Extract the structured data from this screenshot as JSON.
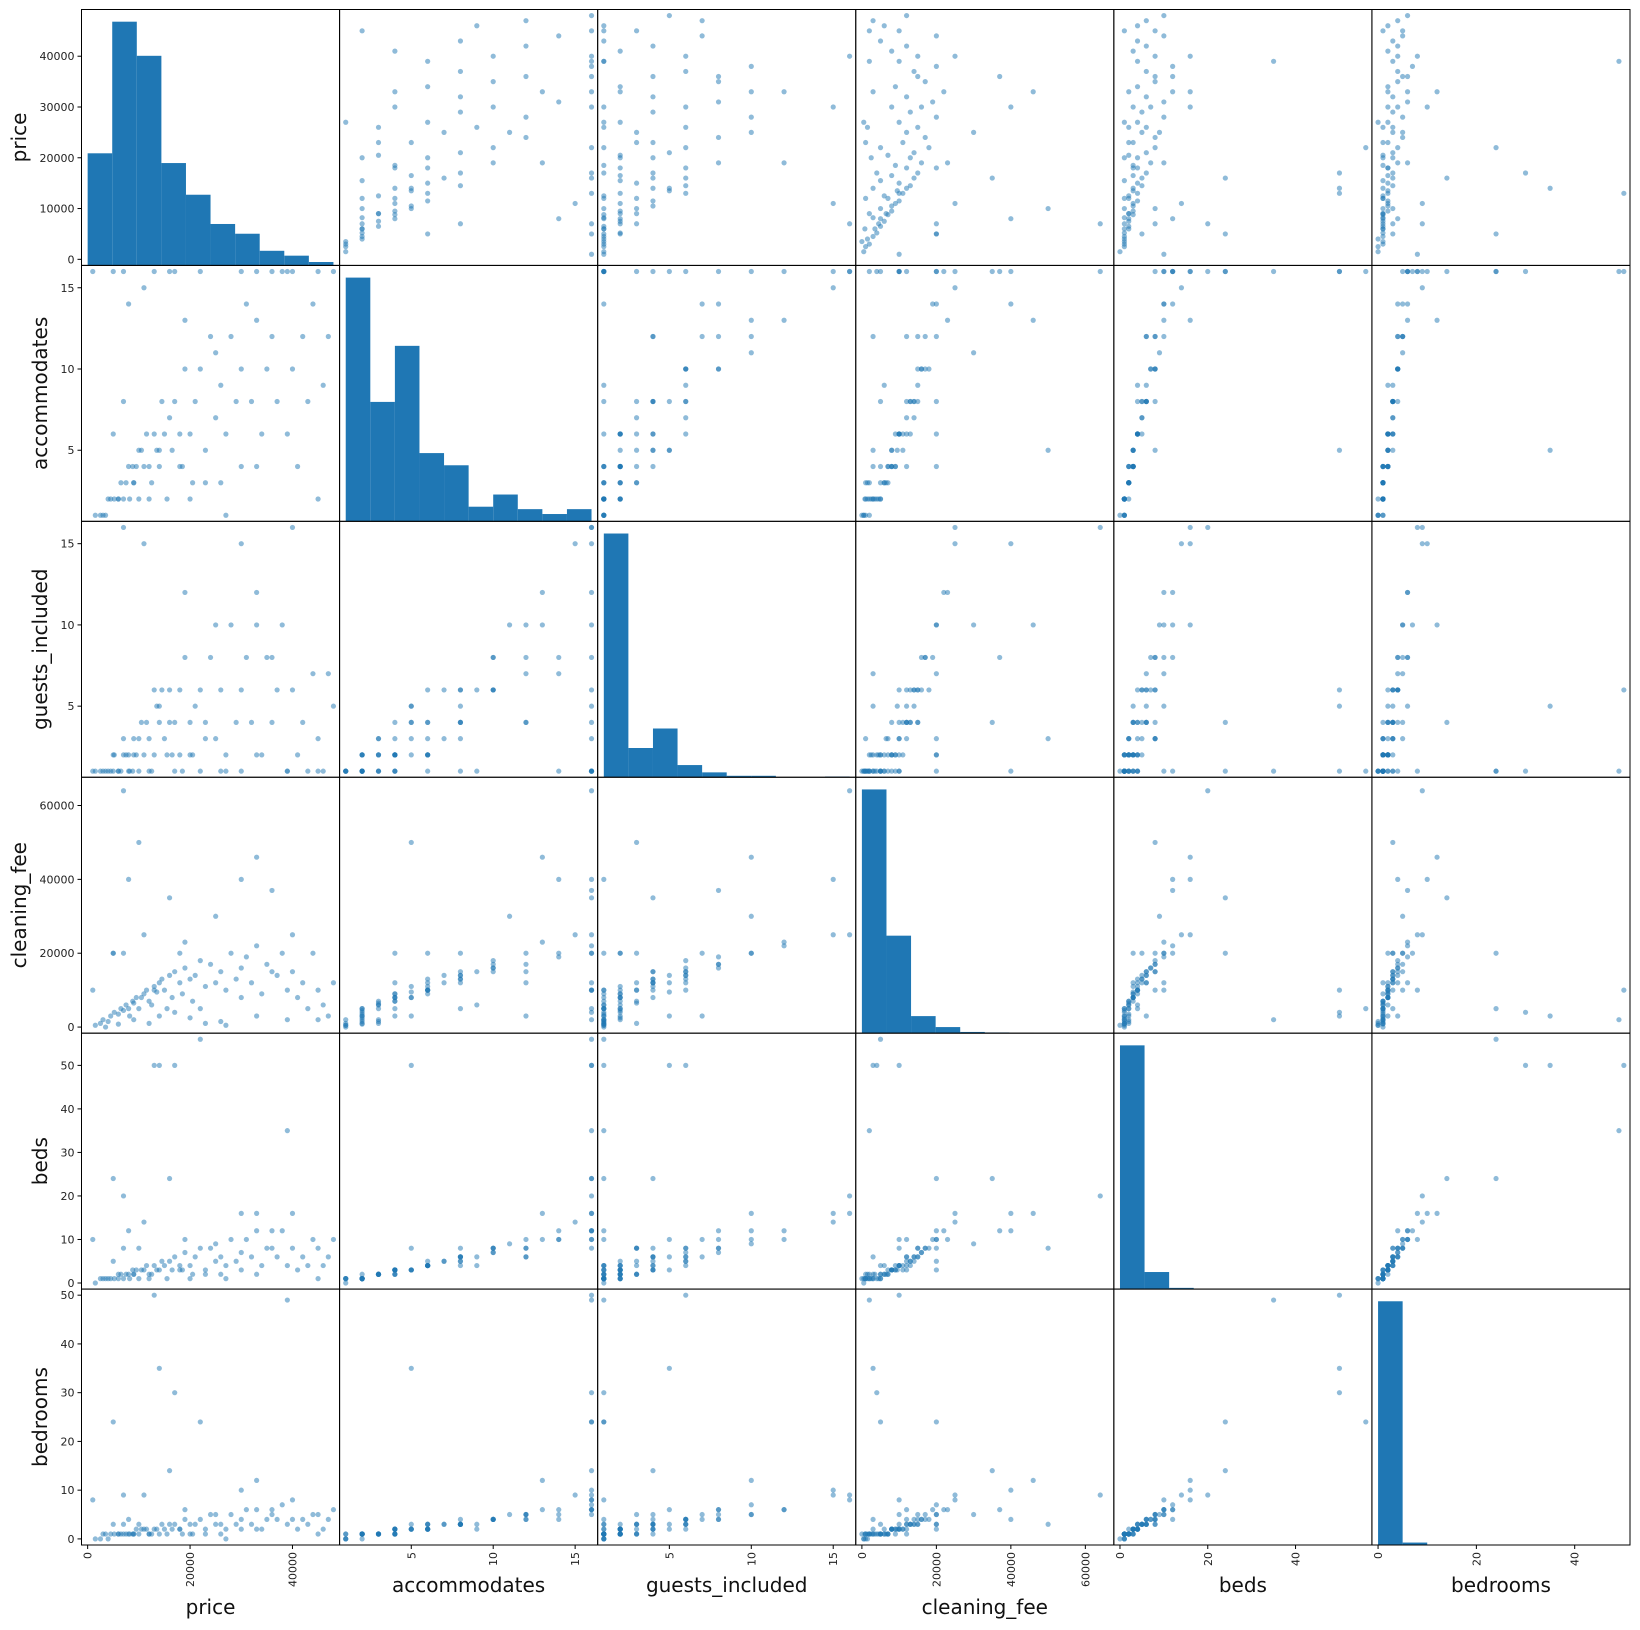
{
  "chart_data": {
    "type": "scatter",
    "kind": "scatter matrix with histogram diagonal",
    "color": "#1f77b4",
    "point_alpha": 0.5,
    "grid": false,
    "variables": [
      {
        "name": "price",
        "min": 0,
        "max": 48000,
        "ticks": [
          0,
          10000,
          20000,
          30000,
          40000
        ],
        "xticks": [
          0,
          20000,
          40000
        ],
        "hist_relative": [
          46,
          100,
          86,
          42,
          29,
          17,
          13,
          6,
          4,
          1.4
        ]
      },
      {
        "name": "accommodates",
        "min": 1,
        "max": 16,
        "ticks": [
          5,
          10,
          15
        ],
        "xticks": [
          5,
          10,
          15
        ],
        "hist_relative": [
          100,
          49,
          72,
          28,
          23,
          6,
          11,
          5,
          3,
          5
        ]
      },
      {
        "name": "guests_included",
        "min": 1,
        "max": 16,
        "ticks": [
          5,
          10,
          15
        ],
        "xticks": [
          5,
          10,
          15
        ],
        "hist_relative": [
          100,
          12,
          20,
          5,
          2,
          0.6,
          0.6,
          0,
          0,
          0.3
        ]
      },
      {
        "name": "cleaning_fee",
        "min": 0,
        "max": 66000,
        "ticks": [
          0,
          20000,
          40000,
          60000
        ],
        "xticks": [
          0,
          20000,
          40000,
          60000
        ],
        "hist_relative": [
          100,
          40,
          7,
          2.5,
          0.5,
          0.3,
          0.1,
          0,
          0,
          0.05
        ]
      },
      {
        "name": "beds",
        "min": 0,
        "max": 56,
        "ticks": [
          0,
          10,
          20,
          30,
          40,
          50
        ],
        "xticks": [
          0,
          20,
          40
        ],
        "hist_relative": [
          100,
          7,
          0.5,
          0,
          0,
          0,
          0,
          0,
          0,
          0
        ]
      },
      {
        "name": "bedrooms",
        "min": 0,
        "max": 50,
        "ticks": [
          0,
          10,
          20,
          30,
          40,
          50
        ],
        "xticks": [
          0,
          20,
          40
        ],
        "hist_relative": [
          100,
          1,
          0,
          0,
          0,
          0,
          0,
          0,
          0,
          0
        ]
      }
    ],
    "record_fields": [
      "price",
      "accommodates",
      "guests_included",
      "cleaning_fee",
      "beds",
      "bedrooms"
    ],
    "records": [
      [
        3000,
        1,
        1,
        2000,
        1,
        1
      ],
      [
        4500,
        2,
        1,
        3000,
        1,
        1
      ],
      [
        5200,
        2,
        2,
        4000,
        1,
        1
      ],
      [
        6000,
        2,
        1,
        3500,
        2,
        1
      ],
      [
        6500,
        3,
        1,
        5000,
        2,
        1
      ],
      [
        7000,
        2,
        2,
        4500,
        1,
        1
      ],
      [
        7500,
        3,
        2,
        6000,
        2,
        1
      ],
      [
        8000,
        4,
        2,
        5000,
        2,
        1
      ],
      [
        8200,
        2,
        1,
        3000,
        1,
        1
      ],
      [
        8800,
        4,
        1,
        7000,
        3,
        1
      ],
      [
        9000,
        3,
        3,
        6500,
        2,
        1
      ],
      [
        9500,
        4,
        2,
        8000,
        3,
        2
      ],
      [
        10000,
        2,
        1,
        5000,
        1,
        1
      ],
      [
        10500,
        5,
        4,
        8000,
        3,
        2
      ],
      [
        11000,
        4,
        2,
        9000,
        3,
        2
      ],
      [
        11500,
        6,
        4,
        10000,
        4,
        2
      ],
      [
        12000,
        4,
        3,
        7000,
        2,
        1
      ],
      [
        12500,
        3,
        1,
        6000,
        2,
        1
      ],
      [
        13000,
        6,
        2,
        11000,
        4,
        2
      ],
      [
        13500,
        5,
        5,
        9500,
        3,
        2
      ],
      [
        14000,
        4,
        4,
        12000,
        3,
        1
      ],
      [
        14500,
        8,
        6,
        13000,
        5,
        3
      ],
      [
        15000,
        6,
        3,
        10000,
        4,
        2
      ],
      [
        15500,
        2,
        2,
        5000,
        1,
        1
      ],
      [
        16000,
        7,
        6,
        14000,
        5,
        3
      ],
      [
        16500,
        5,
        2,
        8000,
        3,
        2
      ],
      [
        17000,
        8,
        4,
        15000,
        6,
        3
      ],
      [
        18000,
        6,
        6,
        12000,
        4,
        2
      ],
      [
        18500,
        4,
        1,
        9000,
        3,
        1
      ],
      [
        19000,
        10,
        8,
        16000,
        7,
        4
      ],
      [
        20000,
        6,
        4,
        13000,
        4,
        3
      ],
      [
        20500,
        3,
        2,
        7000,
        2,
        1
      ],
      [
        21000,
        8,
        5,
        14000,
        6,
        3
      ],
      [
        22000,
        10,
        6,
        18000,
        8,
        4
      ],
      [
        23000,
        5,
        4,
        11000,
        3,
        2
      ],
      [
        24000,
        12,
        8,
        17000,
        8,
        5
      ],
      [
        25000,
        7,
        3,
        12000,
        5,
        3
      ],
      [
        26000,
        9,
        6,
        15000,
        6,
        3
      ],
      [
        27000,
        6,
        2,
        10000,
        4,
        2
      ],
      [
        28000,
        12,
        10,
        20000,
        10,
        5
      ],
      [
        29000,
        8,
        4,
        13000,
        5,
        3
      ],
      [
        30000,
        10,
        6,
        16000,
        7,
        4
      ],
      [
        30000,
        4,
        1,
        8000,
        3,
        2
      ],
      [
        31000,
        14,
        8,
        19000,
        10,
        6
      ],
      [
        32000,
        8,
        4,
        12000,
        6,
        3
      ],
      [
        33000,
        16,
        12,
        22000,
        12,
        6
      ],
      [
        34000,
        6,
        2,
        9000,
        4,
        2
      ],
      [
        35000,
        10,
        8,
        17000,
        8,
        4
      ],
      [
        36000,
        12,
        4,
        15000,
        8,
        5
      ],
      [
        37000,
        8,
        6,
        14000,
        6,
        4
      ],
      [
        38000,
        16,
        10,
        20000,
        12,
        7
      ],
      [
        39000,
        6,
        1,
        10000,
        4,
        3
      ],
      [
        40000,
        10,
        6,
        15000,
        8,
        4
      ],
      [
        40000,
        16,
        16,
        25000,
        16,
        8
      ],
      [
        41000,
        4,
        2,
        8000,
        3,
        2
      ],
      [
        42000,
        12,
        4,
        12000,
        6,
        4
      ],
      [
        43000,
        8,
        1,
        5000,
        4,
        3
      ],
      [
        44000,
        14,
        7,
        20000,
        10,
        5
      ],
      [
        45000,
        16,
        3,
        10000,
        8,
        5
      ],
      [
        46000,
        9,
        1,
        6000,
        4,
        2
      ],
      [
        47000,
        12,
        7,
        3000,
        6,
        4
      ],
      [
        48000,
        16,
        5,
        12000,
        10,
        6
      ],
      [
        5000,
        16,
        1,
        20000,
        24,
        24
      ],
      [
        14000,
        5,
        5,
        3000,
        50,
        35
      ],
      [
        13000,
        16,
        6,
        10000,
        50,
        50
      ],
      [
        17000,
        16,
        1,
        4000,
        50,
        30
      ],
      [
        22000,
        16,
        1,
        5000,
        56,
        24
      ],
      [
        39000,
        16,
        1,
        2000,
        35,
        49
      ],
      [
        7000,
        16,
        16,
        64000,
        20,
        9
      ],
      [
        10000,
        5,
        3,
        50000,
        8,
        3
      ],
      [
        8000,
        14,
        1,
        40000,
        12,
        4
      ],
      [
        33000,
        13,
        10,
        46000,
        16,
        12
      ],
      [
        16000,
        16,
        4,
        35000,
        24,
        14
      ],
      [
        1500,
        1,
        1,
        500,
        0,
        0
      ],
      [
        2500,
        1,
        1,
        1000,
        1,
        0
      ],
      [
        4000,
        2,
        1,
        1500,
        1,
        0
      ],
      [
        3500,
        1,
        1,
        0,
        1,
        1
      ],
      [
        6000,
        2,
        1,
        800,
        1,
        1
      ],
      [
        9000,
        3,
        2,
        2000,
        2,
        1
      ],
      [
        12000,
        2,
        1,
        1000,
        1,
        1
      ],
      [
        20000,
        2,
        2,
        2500,
        1,
        1
      ],
      [
        26000,
        3,
        1,
        1500,
        2,
        1
      ],
      [
        33000,
        4,
        2,
        3000,
        2,
        2
      ],
      [
        1000,
        16,
        1,
        10000,
        10,
        8
      ],
      [
        5000,
        6,
        2,
        20000,
        5,
        3
      ],
      [
        7000,
        8,
        3,
        20000,
        8,
        3
      ],
      [
        18000,
        4,
        2,
        20000,
        3,
        2
      ],
      [
        30000,
        16,
        15,
        40000,
        16,
        10
      ],
      [
        36000,
        16,
        8,
        37000,
        12,
        6
      ],
      [
        25000,
        11,
        10,
        30000,
        9,
        5
      ],
      [
        11000,
        15,
        15,
        25000,
        14,
        9
      ],
      [
        19000,
        13,
        12,
        23000,
        10,
        6
      ],
      [
        23000,
        3,
        3,
        1000,
        2,
        1
      ],
      [
        45000,
        2,
        1,
        2000,
        1,
        1
      ],
      [
        27000,
        1,
        1,
        500,
        1,
        0
      ]
    ]
  }
}
